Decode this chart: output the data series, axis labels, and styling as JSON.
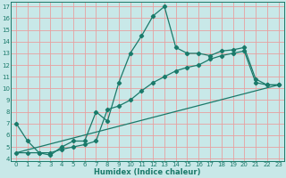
{
  "title": "",
  "xlabel": "Humidex (Indice chaleur)",
  "ylabel": "",
  "background_color": "#c8e8e8",
  "grid_color": "#e8a0a0",
  "line_color": "#1a7a6a",
  "xlim": [
    -0.5,
    23.5
  ],
  "ylim": [
    3.8,
    17.4
  ],
  "xticks": [
    0,
    1,
    2,
    3,
    4,
    5,
    6,
    7,
    8,
    9,
    10,
    11,
    12,
    13,
    14,
    15,
    16,
    17,
    18,
    19,
    20,
    21,
    22,
    23
  ],
  "yticks": [
    4,
    5,
    6,
    7,
    8,
    9,
    10,
    11,
    12,
    13,
    14,
    15,
    16,
    17
  ],
  "series1_x": [
    0,
    1,
    2,
    3,
    4,
    5,
    6,
    7,
    8,
    9,
    10,
    11,
    12,
    13,
    14,
    15,
    16,
    17,
    18,
    19,
    20,
    21,
    22,
    23
  ],
  "series1_y": [
    7.0,
    5.5,
    4.5,
    4.3,
    5.0,
    5.5,
    5.5,
    8.0,
    7.2,
    10.5,
    13.0,
    14.5,
    16.2,
    17.0,
    13.5,
    13.0,
    13.0,
    12.8,
    13.2,
    13.3,
    13.5,
    10.8,
    10.3,
    10.3
  ],
  "series2_x": [
    0,
    1,
    2,
    3,
    4,
    5,
    6,
    7,
    8,
    9,
    10,
    11,
    12,
    13,
    14,
    15,
    16,
    17,
    18,
    19,
    20,
    21,
    22,
    23
  ],
  "series2_y": [
    4.5,
    4.5,
    4.5,
    4.5,
    4.8,
    5.0,
    5.2,
    5.5,
    8.2,
    8.5,
    9.0,
    9.8,
    10.5,
    11.0,
    11.5,
    11.8,
    12.0,
    12.5,
    12.8,
    13.0,
    13.2,
    10.5,
    10.3,
    10.3
  ],
  "series3_x": [
    0,
    23
  ],
  "series3_y": [
    4.5,
    10.3
  ],
  "marker": "D",
  "markersize": 2.2,
  "linewidth": 0.9,
  "tick_fontsize": 5.0,
  "xlabel_fontsize": 6.0
}
